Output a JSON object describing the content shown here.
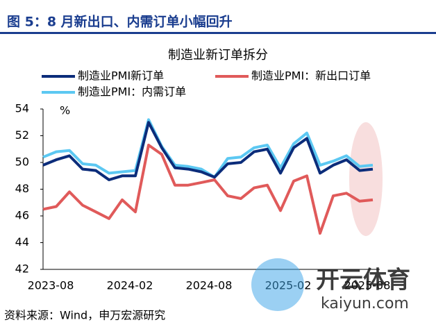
{
  "header": {
    "title": "图 5：8 月新出口、内需订单小幅回升"
  },
  "chart_data": {
    "type": "line",
    "title": "制造业新订单拆分",
    "y_unit": "%",
    "categories": [
      null,
      "2023-08",
      null,
      null,
      null,
      null,
      null,
      "2024-02",
      null,
      null,
      null,
      null,
      null,
      "2024-08",
      null,
      null,
      null,
      null,
      null,
      "2025-02",
      null,
      null,
      null,
      null,
      null,
      "2025-08"
    ],
    "series": [
      {
        "name": "制造业PMI新订单",
        "color": "#0b2c7a",
        "values": [
          49.8,
          50.2,
          50.5,
          49.5,
          49.4,
          48.7,
          49.0,
          49.0,
          53.0,
          51.1,
          49.6,
          49.5,
          49.3,
          48.9,
          49.9,
          50.0,
          50.8,
          51.0,
          49.2,
          51.1,
          51.8,
          49.2,
          49.8,
          50.2,
          49.4,
          49.5
        ]
      },
      {
        "name": "制造业PMI：新出口订单",
        "color": "#e05a5a",
        "values": [
          46.5,
          46.7,
          47.8,
          46.8,
          46.3,
          45.8,
          47.2,
          46.3,
          51.3,
          50.6,
          48.3,
          48.3,
          48.5,
          48.7,
          47.5,
          47.3,
          48.1,
          48.3,
          46.4,
          48.6,
          49.0,
          44.7,
          47.5,
          47.7,
          47.1,
          47.2
        ]
      },
      {
        "name": "制造业PMI：内需订单",
        "color": "#5cc8f2",
        "values": [
          50.4,
          50.8,
          50.9,
          49.9,
          49.8,
          49.2,
          49.3,
          49.4,
          53.2,
          51.2,
          49.8,
          49.7,
          49.5,
          48.9,
          50.3,
          50.4,
          51.1,
          51.3,
          49.6,
          51.4,
          52.2,
          49.8,
          50.1,
          50.5,
          49.7,
          49.8
        ]
      }
    ],
    "ylim": [
      42,
      54
    ],
    "yticks": [
      42,
      44,
      46,
      48,
      50,
      52,
      54
    ]
  },
  "footer": {
    "source": "资料来源：Wind，申万宏源研究"
  },
  "watermark": {
    "brand": "开云体育",
    "site": "kaiyun.com"
  }
}
